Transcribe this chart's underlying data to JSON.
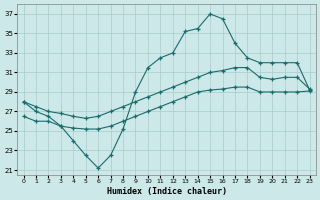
{
  "bg_color": "#cce8e8",
  "grid_color": "#aacccc",
  "line_color": "#1a6b6b",
  "xlabel": "Humidex (Indice chaleur)",
  "yticks": [
    21,
    23,
    25,
    27,
    29,
    31,
    33,
    35,
    37
  ],
  "xtick_labels": [
    "0",
    "1",
    "2",
    "3",
    "4",
    "5",
    "6",
    "7",
    "8",
    "9",
    "10",
    "11",
    "12",
    "13",
    "14",
    "15",
    "16",
    "17",
    "18",
    "19",
    "20",
    "21",
    "22",
    "23"
  ],
  "ylim": [
    20.5,
    38.0
  ],
  "xlim": [
    -0.5,
    23.5
  ],
  "humidex": [
    28.0,
    27.0,
    26.5,
    25.5,
    24.0,
    22.5,
    21.2,
    22.5,
    25.2,
    29.0,
    31.5,
    32.5,
    33.0,
    35.2,
    35.5,
    37.0,
    36.5,
    34.0,
    32.5,
    32.0,
    32.0,
    32.0,
    32.0,
    29.2
  ],
  "line_upper": [
    28.0,
    27.5,
    27.0,
    26.8,
    26.5,
    26.3,
    26.5,
    27.0,
    27.5,
    28.0,
    28.5,
    29.0,
    29.5,
    30.0,
    30.5,
    31.0,
    31.2,
    31.5,
    31.5,
    30.5,
    30.3,
    30.5,
    30.5,
    29.3
  ],
  "line_lower": [
    26.5,
    26.0,
    26.0,
    25.5,
    25.3,
    25.2,
    25.2,
    25.5,
    26.0,
    26.5,
    27.0,
    27.5,
    28.0,
    28.5,
    29.0,
    29.2,
    29.3,
    29.5,
    29.5,
    29.0,
    29.0,
    29.0,
    29.0,
    29.1
  ]
}
